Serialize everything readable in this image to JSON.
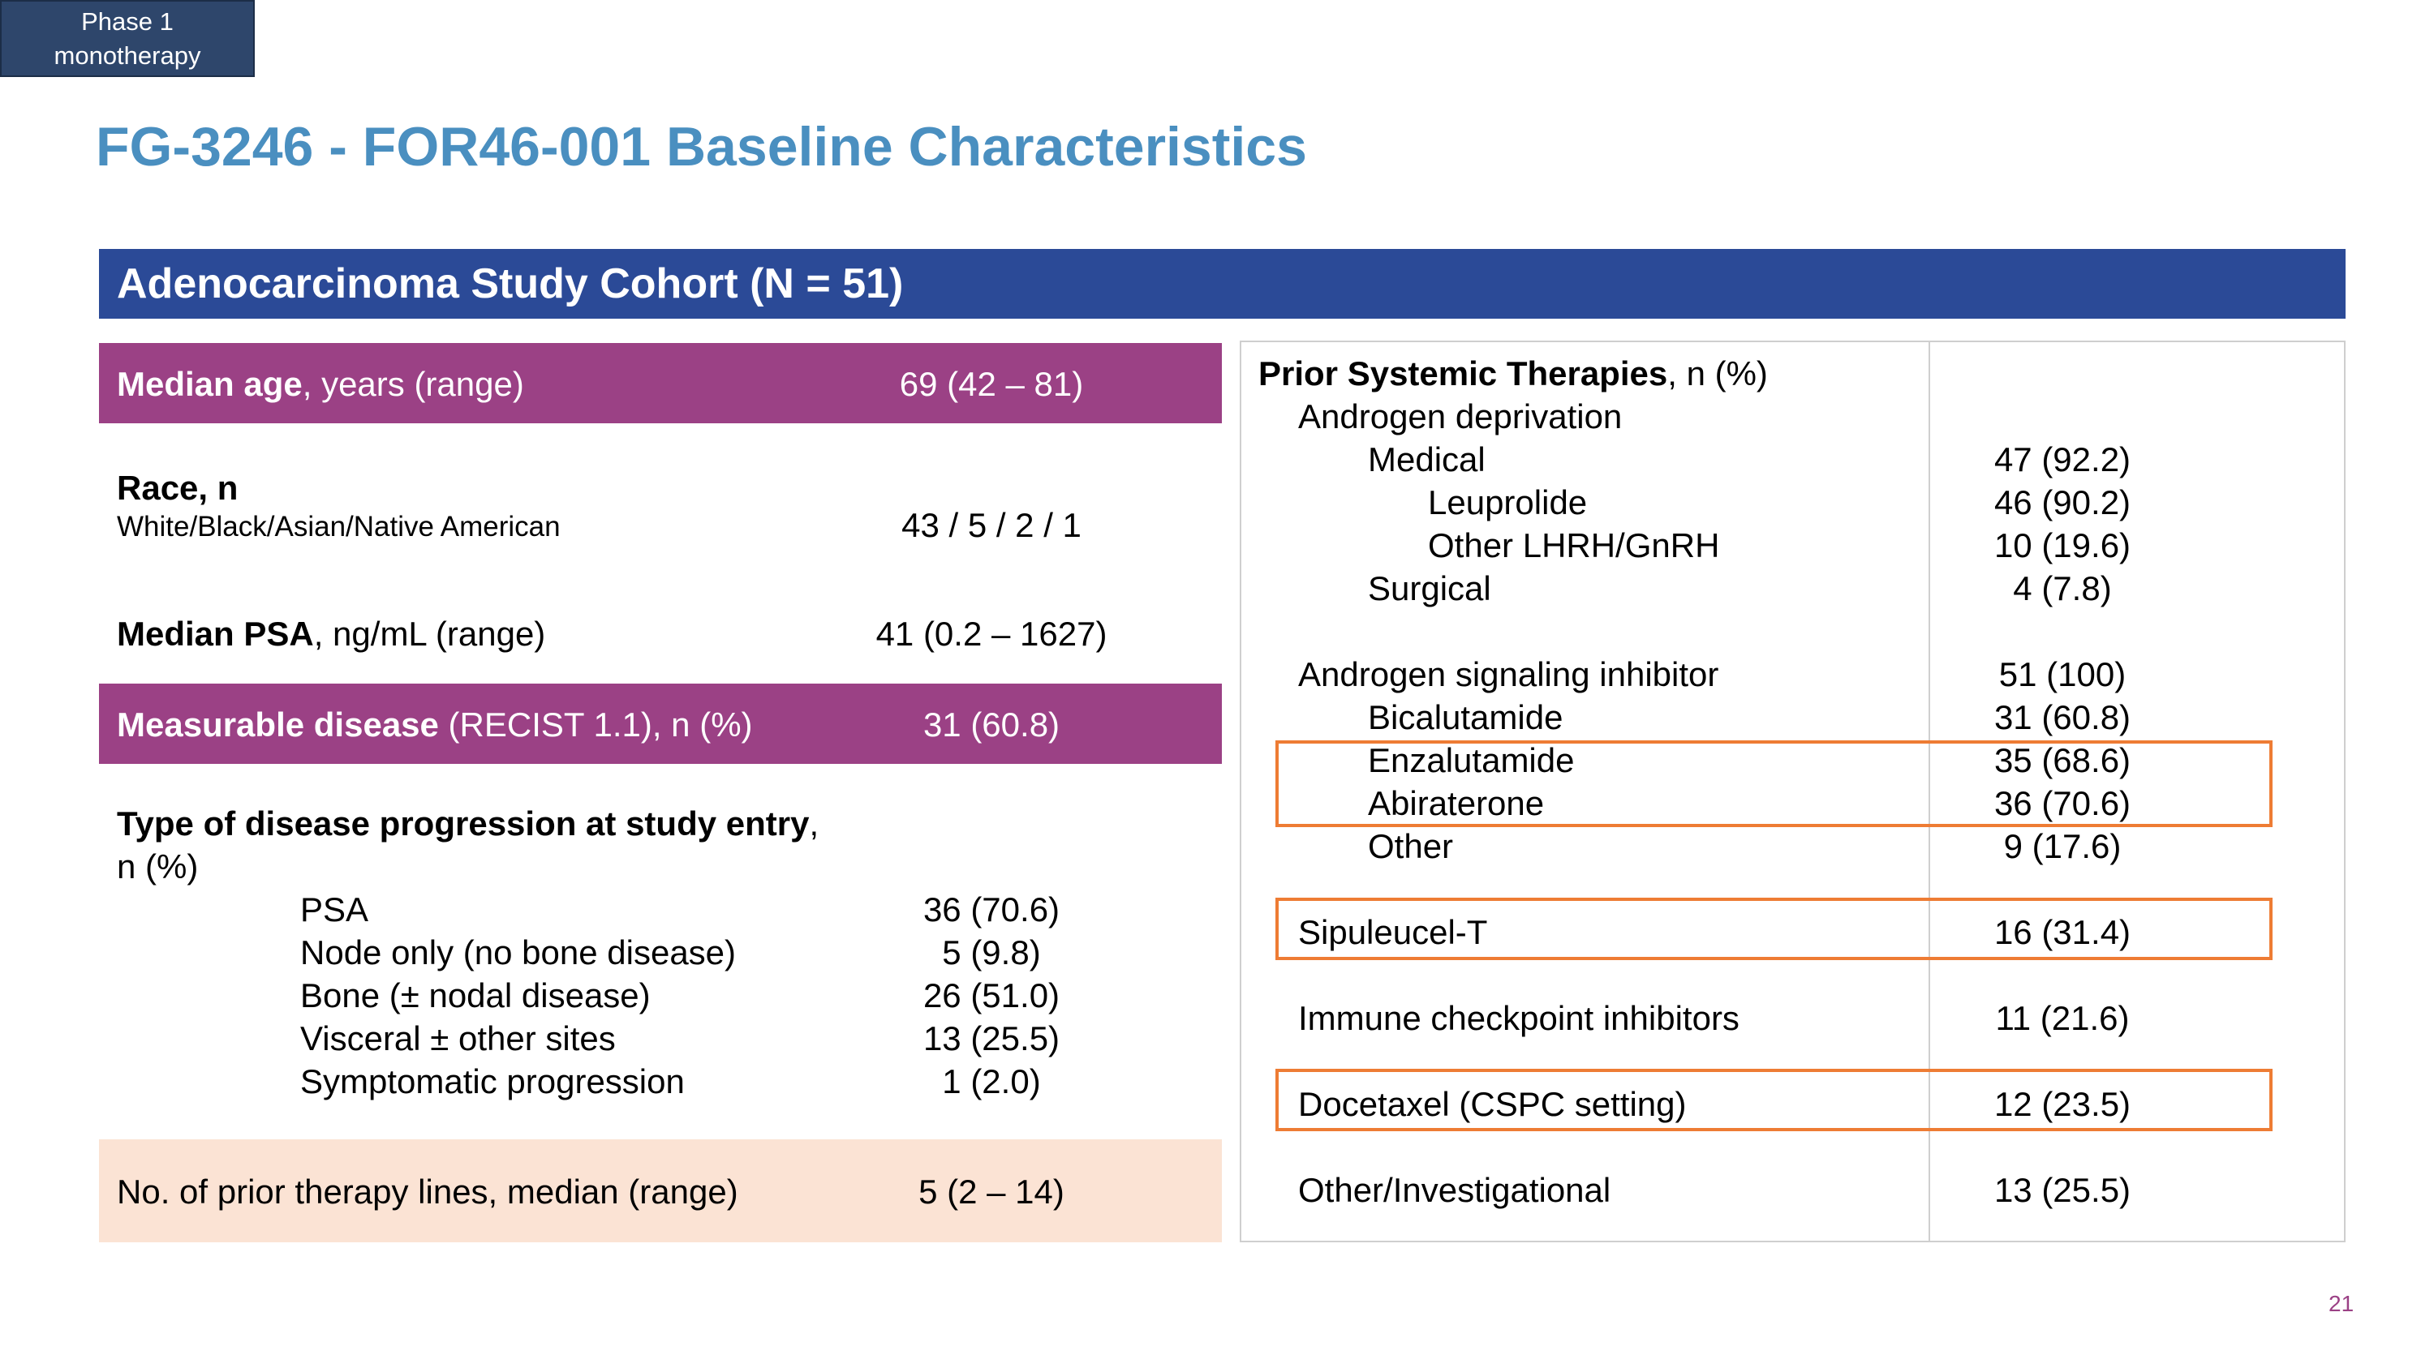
{
  "phase_tag": [
    "Phase 1",
    "monotherapy"
  ],
  "title": "FG-3246 - FOR46-001 Baseline Characteristics",
  "cohort": "Adenocarcinoma Study Cohort (N = 51)",
  "left": {
    "median_age": {
      "label_bold": "Median age",
      "label_rest": ", years (range)",
      "value": "69 (42 – 81)"
    },
    "race": {
      "label_bold": "Race, n",
      "sub": "White/Black/Asian/Native American",
      "value": "43 / 5 / 2 / 1"
    },
    "median_psa": {
      "label_bold": "Median PSA",
      "label_rest": ", ng/mL (range)",
      "value": "41 (0.2 – 1627)"
    },
    "measurable": {
      "label_bold": "Measurable disease",
      "label_rest": " (RECIST 1.1), n (%)",
      "value": "31 (60.8)"
    },
    "progression": {
      "label_bold": "Type of disease progression at study entry",
      "label_rest": ",",
      "label_line2": "n (%)",
      "items": [
        {
          "label": "PSA",
          "value": "36 (70.6)"
        },
        {
          "label": "Node only (no bone disease)",
          "value": "5 (9.8)"
        },
        {
          "label": "Bone (± nodal disease)",
          "value": "26 (51.0)"
        },
        {
          "label": "Visceral ± other sites",
          "value": "13 (25.5)"
        },
        {
          "label": "Symptomatic progression",
          "value": "1 (2.0)"
        }
      ]
    },
    "prior_lines": {
      "label": "No. of prior therapy lines, median (range)",
      "value": "5 (2 – 14)"
    }
  },
  "right": {
    "header_bold": "Prior Systemic Therapies",
    "header_rest": ", n (%)",
    "rows": [
      {
        "label": "Androgen deprivation",
        "value": ""
      },
      {
        "label": "Medical",
        "value": "47 (92.2)"
      },
      {
        "label": "Leuprolide",
        "value": "46 (90.2)"
      },
      {
        "label": "Other LHRH/GnRH",
        "value": "10 (19.6)"
      },
      {
        "label": "Surgical",
        "value": "4 (7.8)"
      },
      {
        "label": "Androgen signaling inhibitor",
        "value": "51 (100)"
      },
      {
        "label": "Bicalutamide",
        "value": "31 (60.8)"
      },
      {
        "label": "Enzalutamide",
        "value": "35 (68.6)"
      },
      {
        "label": "Abiraterone",
        "value": "36 (70.6)"
      },
      {
        "label": "Other",
        "value": "9 (17.6)"
      },
      {
        "label": "Sipuleucel-T",
        "value": "16 (31.4)"
      },
      {
        "label": "Immune checkpoint inhibitors",
        "value": "11 (21.6)"
      },
      {
        "label": "Docetaxel (CSPC setting)",
        "value": "12 (23.5)"
      },
      {
        "label": "Other/Investigational",
        "value": "13 (25.5)"
      }
    ]
  },
  "colors": {
    "title": "#4a8fc0",
    "cohort_bar": "#2b4a97",
    "purple": "#9b4185",
    "peach": "#fbe3d4",
    "highlight": "#ee7c34"
  },
  "page_number": "21"
}
